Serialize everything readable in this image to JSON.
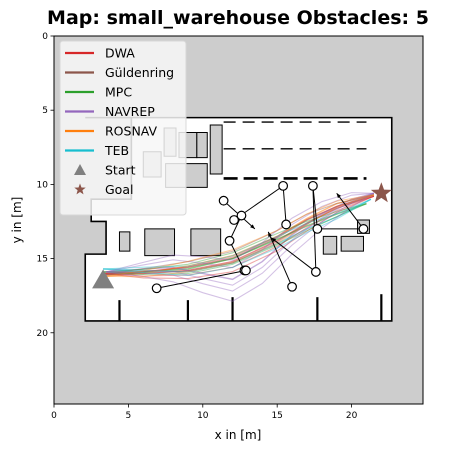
{
  "chart_data": {
    "type": "map",
    "title": "Map: small_warehouse Obstacles: 5",
    "xlabel": "x in [m]",
    "ylabel": "y in [m]",
    "xlim": [
      0,
      24.8
    ],
    "ylim": [
      0,
      24.8
    ],
    "y_inverted": true,
    "xticks": [
      0,
      5,
      10,
      15,
      20
    ],
    "yticks": [
      0,
      5,
      10,
      15,
      20
    ],
    "background_color": "#cdcdcd",
    "free_space_color": "#ffffff",
    "legend": {
      "placement": "upper-left",
      "entries": [
        {
          "label": "DWA",
          "color": "#d62728",
          "marker": "line"
        },
        {
          "label": "Güldenring",
          "color": "#8c564b",
          "marker": "line"
        },
        {
          "label": "MPC",
          "color": "#2ca02c",
          "marker": "line"
        },
        {
          "label": "NAVREP",
          "color": "#9467bd",
          "marker": "line"
        },
        {
          "label": "ROSNAV",
          "color": "#ff7f0e",
          "marker": "line"
        },
        {
          "label": "TEB",
          "color": "#17becf",
          "marker": "line"
        },
        {
          "label": "Start",
          "color": "#808080",
          "marker": "triangle"
        },
        {
          "label": "Goal",
          "color": "#8c564b",
          "marker": "star"
        }
      ]
    },
    "start": {
      "x": 3.3,
      "y": 16.4
    },
    "goal": {
      "x": 22.0,
      "y": 10.6
    },
    "free_area": [
      [
        2.1,
        5.5
      ],
      [
        22.7,
        5.5
      ],
      [
        22.7,
        19.2
      ],
      [
        2.1,
        19.2
      ],
      [
        2.1,
        14.7
      ],
      [
        3.5,
        14.7
      ],
      [
        3.5,
        12.5
      ],
      [
        2.5,
        12.5
      ],
      [
        2.5,
        11.0
      ],
      [
        5.2,
        11.0
      ],
      [
        5.2,
        5.5
      ]
    ],
    "obstacles_static": [
      [
        [
          7.4,
          6.2
        ],
        [
          8.2,
          6.2
        ],
        [
          8.2,
          8.1
        ],
        [
          7.4,
          8.1
        ]
      ],
      [
        [
          8.4,
          6.5
        ],
        [
          9.6,
          6.5
        ],
        [
          9.6,
          8.2
        ],
        [
          8.4,
          8.2
        ]
      ],
      [
        [
          9.6,
          6.5
        ],
        [
          10.3,
          6.5
        ],
        [
          10.3,
          8.2
        ],
        [
          9.6,
          8.2
        ]
      ],
      [
        [
          10.5,
          6.0
        ],
        [
          11.3,
          6.0
        ],
        [
          11.3,
          9.3
        ],
        [
          10.5,
          9.3
        ]
      ],
      [
        [
          6.0,
          7.8
        ],
        [
          7.2,
          7.8
        ],
        [
          7.2,
          9.5
        ],
        [
          6.0,
          9.5
        ]
      ],
      [
        [
          7.5,
          8.6
        ],
        [
          10.3,
          8.6
        ],
        [
          10.3,
          10.2
        ],
        [
          7.5,
          10.2
        ]
      ],
      [
        [
          4.4,
          13.2
        ],
        [
          5.1,
          13.2
        ],
        [
          5.1,
          14.5
        ],
        [
          4.4,
          14.5
        ]
      ],
      [
        [
          6.1,
          13.0
        ],
        [
          8.1,
          13.0
        ],
        [
          8.1,
          14.8
        ],
        [
          6.1,
          14.8
        ]
      ],
      [
        [
          9.2,
          13.0
        ],
        [
          11.2,
          13.0
        ],
        [
          11.2,
          14.8
        ],
        [
          9.2,
          14.8
        ]
      ],
      [
        [
          18.1,
          13.5
        ],
        [
          19.0,
          13.5
        ],
        [
          19.0,
          14.7
        ],
        [
          18.1,
          14.7
        ]
      ],
      [
        [
          19.3,
          13.5
        ],
        [
          20.8,
          13.5
        ],
        [
          20.8,
          14.5
        ],
        [
          19.3,
          14.5
        ]
      ],
      [
        [
          20.4,
          12.4
        ],
        [
          21.2,
          12.4
        ],
        [
          21.2,
          13.3
        ],
        [
          20.4,
          13.3
        ]
      ]
    ],
    "walls": [
      [
        [
          12.0,
          19.2
        ],
        [
          12.0,
          17.6
        ]
      ],
      [
        [
          17.7,
          19.2
        ],
        [
          17.7,
          17.6
        ]
      ],
      [
        [
          9.0,
          19.2
        ],
        [
          9.0,
          17.8
        ]
      ],
      [
        [
          4.4,
          19.2
        ],
        [
          4.4,
          17.8
        ]
      ],
      [
        [
          22.0,
          19.2
        ],
        [
          22.0,
          17.4
        ]
      ]
    ],
    "dashed_lines": [
      {
        "y": 5.8,
        "x_start": 11.4,
        "x_end": 21.0,
        "bold": false
      },
      {
        "y": 7.6,
        "x_start": 11.4,
        "x_end": 21.0,
        "bold": false
      },
      {
        "y": 9.6,
        "x_start": 11.4,
        "x_end": 21.0,
        "bold": true
      }
    ],
    "dynamic_obstacle_points": [
      {
        "x": 11.4,
        "y": 11.1
      },
      {
        "x": 12.1,
        "y": 12.4
      },
      {
        "x": 12.6,
        "y": 12.1
      },
      {
        "x": 15.4,
        "y": 10.1
      },
      {
        "x": 15.6,
        "y": 12.7
      },
      {
        "x": 17.4,
        "y": 10.1
      },
      {
        "x": 17.7,
        "y": 13.0
      },
      {
        "x": 20.8,
        "y": 13.0
      },
      {
        "x": 11.8,
        "y": 13.8
      },
      {
        "x": 12.8,
        "y": 15.8
      },
      {
        "x": 12.9,
        "y": 15.8
      },
      {
        "x": 6.9,
        "y": 17.0
      },
      {
        "x": 16.0,
        "y": 16.9
      },
      {
        "x": 17.6,
        "y": 15.9
      }
    ],
    "dynamic_obstacle_links": [
      [
        11.4,
        11.1,
        13.5,
        13.0
      ],
      [
        12.1,
        12.4,
        15.4,
        10.1
      ],
      [
        15.4,
        10.1,
        15.6,
        12.7
      ],
      [
        17.4,
        10.1,
        17.7,
        13.0
      ],
      [
        17.7,
        13.0,
        20.8,
        13.0
      ],
      [
        11.8,
        13.8,
        12.6,
        12.1
      ],
      [
        11.8,
        13.8,
        12.8,
        15.8
      ],
      [
        6.9,
        17.0,
        12.9,
        15.8
      ],
      [
        16.0,
        16.9,
        14.4,
        13.2
      ],
      [
        17.6,
        15.9,
        14.6,
        13.6
      ],
      [
        17.4,
        10.1,
        17.6,
        15.9
      ],
      [
        20.8,
        13.0,
        19.0,
        10.6
      ]
    ],
    "series": [
      {
        "name": "DWA",
        "color": "#d62728",
        "points": [
          [
            3.3,
            16.0
          ],
          [
            6,
            16.0
          ],
          [
            9,
            15.8
          ],
          [
            12,
            15.2
          ],
          [
            15,
            13.8
          ],
          [
            17,
            12.6
          ],
          [
            19,
            11.6
          ],
          [
            21.5,
            10.8
          ]
        ]
      },
      {
        "name": "Güldenring",
        "color": "#8c564b",
        "points": [
          [
            3.3,
            16.1
          ],
          [
            6,
            15.9
          ],
          [
            9,
            15.6
          ],
          [
            12,
            15.0
          ],
          [
            15,
            13.6
          ],
          [
            17,
            12.4
          ],
          [
            19,
            11.5
          ],
          [
            21.5,
            10.7
          ]
        ]
      },
      {
        "name": "MPC",
        "color": "#2ca02c",
        "points": [
          [
            3.3,
            15.9
          ],
          [
            6,
            15.9
          ],
          [
            9,
            15.7
          ],
          [
            12,
            15.0
          ],
          [
            15,
            13.7
          ],
          [
            17,
            12.8
          ],
          [
            19,
            12.0
          ],
          [
            21.0,
            11.3
          ]
        ]
      },
      {
        "name": "NAVREP",
        "color": "#9467bd",
        "points": [
          [
            3.5,
            15.9
          ],
          [
            6,
            15.7
          ],
          [
            8,
            15.6
          ],
          [
            10,
            16.0
          ],
          [
            12,
            16.4
          ],
          [
            14,
            15.2
          ],
          [
            16,
            13.4
          ],
          [
            18,
            12.0
          ],
          [
            20,
            11.0
          ],
          [
            21.5,
            10.6
          ]
        ]
      },
      {
        "name": "ROSNAV",
        "color": "#ff7f0e",
        "points": [
          [
            3.3,
            16.2
          ],
          [
            6,
            16.0
          ],
          [
            9,
            15.5
          ],
          [
            12,
            14.8
          ],
          [
            15,
            13.5
          ],
          [
            17,
            12.3
          ],
          [
            19,
            11.3
          ],
          [
            21.5,
            10.7
          ]
        ]
      },
      {
        "name": "TEB",
        "color": "#17becf",
        "points": [
          [
            3.3,
            15.7
          ],
          [
            6,
            15.8
          ],
          [
            9,
            15.9
          ],
          [
            12,
            15.3
          ],
          [
            15,
            14.0
          ],
          [
            17,
            13.0
          ],
          [
            19,
            12.2
          ],
          [
            21.3,
            11.0
          ]
        ]
      }
    ],
    "series_variations": [
      {
        "series": "DWA",
        "offsets": [
          [
            0,
            0.4
          ],
          [
            0,
            -0.3
          ],
          [
            0,
            0.7
          ]
        ]
      },
      {
        "series": "Güldenring",
        "offsets": [
          [
            0,
            0.3
          ],
          [
            0,
            -0.5
          ]
        ]
      },
      {
        "series": "MPC",
        "offsets": [
          [
            0,
            0.4
          ],
          [
            0,
            -0.4
          ]
        ]
      },
      {
        "series": "NAVREP",
        "offsets": [
          [
            0,
            0.8
          ],
          [
            0,
            -0.8
          ],
          [
            0,
            1.5
          ],
          [
            0,
            -1.3
          ],
          [
            0,
            0.4
          ]
        ]
      },
      {
        "series": "ROSNAV",
        "offsets": [
          [
            0,
            0.5
          ],
          [
            0,
            -0.4
          ]
        ]
      },
      {
        "series": "TEB",
        "offsets": [
          [
            0,
            0.3
          ],
          [
            0,
            -0.5
          ]
        ]
      }
    ]
  }
}
